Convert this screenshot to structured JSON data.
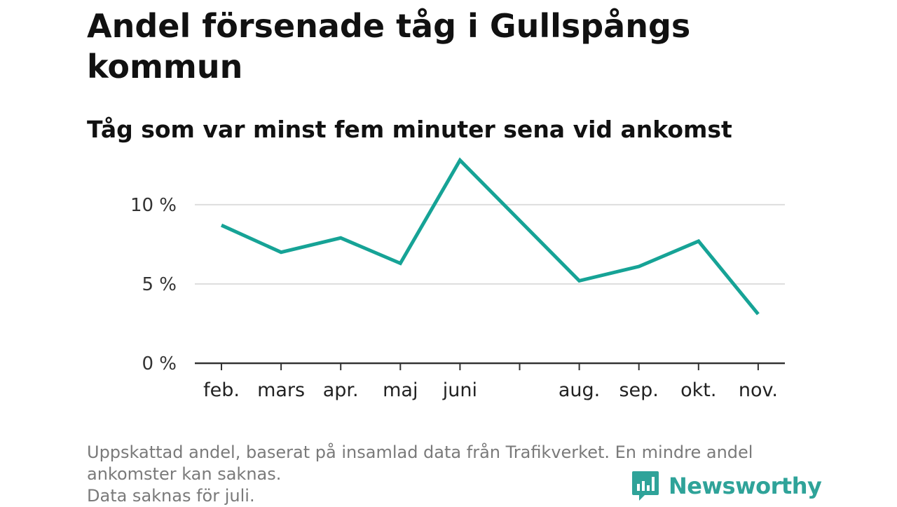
{
  "header": {
    "title": "Andel försenade tåg i Gullspångs kommun",
    "subtitle": "Tåg som var minst fem minuter sena vid ankomst"
  },
  "footer": {
    "note_line1": "Uppskattad andel, baserat på insamlad data från Trafikverket. En mindre andel",
    "note_line2": "ankomster kan saknas.",
    "note_line3": "Data saknas för juli.",
    "brand": "Newsworthy",
    "brand_icon": "newsworthy-logo-icon",
    "brand_color": "#2fa399"
  },
  "chart_data": {
    "type": "line",
    "title": "Andel försenade tåg i Gullspångs kommun",
    "subtitle": "Tåg som var minst fem minuter sena vid ankomst",
    "xlabel": "",
    "ylabel": "",
    "categories": [
      "feb.",
      "mars",
      "apr.",
      "maj",
      "juni",
      "",
      "aug.",
      "sep.",
      "okt.",
      "nov."
    ],
    "series": [
      {
        "values": [
          8.7,
          7.0,
          7.9,
          6.3,
          12.8,
          null,
          5.2,
          6.1,
          7.7,
          3.1
        ],
        "color": "#16a396"
      }
    ],
    "connect_missing": true,
    "ylim": [
      0,
      13
    ],
    "yticks": [
      0,
      5,
      10
    ],
    "ytick_labels": [
      "0 %",
      "5 %",
      "10 %"
    ],
    "grid": true,
    "legend": "none",
    "axis_color": "#333333",
    "grid_color": "#dddddd"
  }
}
